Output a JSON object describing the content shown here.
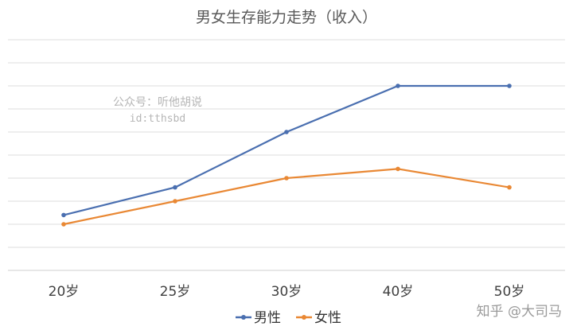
{
  "chart_data": {
    "type": "line",
    "title": "男女生存能力走势（收入）",
    "categories": [
      "20岁",
      "25岁",
      "30岁",
      "40岁",
      "50岁"
    ],
    "y_axis_labels_shown": false,
    "grid": "horizontal",
    "legend_position": "bottom",
    "ylim": [
      0,
      10
    ],
    "series": [
      {
        "name": "男性",
        "color": "#4a6fb0",
        "values": [
          2.4,
          3.6,
          6.0,
          8.0,
          8.0
        ]
      },
      {
        "name": "女性",
        "color": "#e98834",
        "values": [
          2.0,
          3.0,
          4.0,
          4.4,
          3.6
        ]
      }
    ],
    "watermark": {
      "line1": "公众号：听他胡说",
      "line2": "id:tthsbd"
    },
    "footer_watermark": "知乎 @大司马"
  }
}
